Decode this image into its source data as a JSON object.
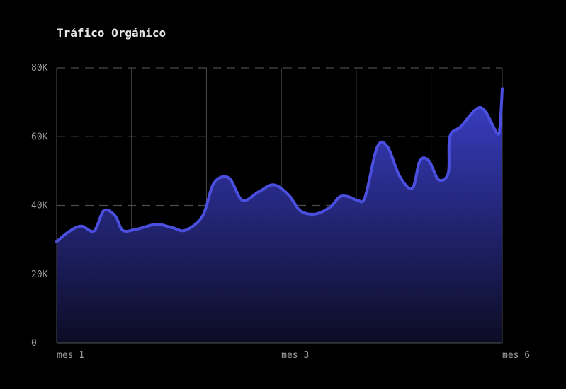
{
  "chart_data": {
    "type": "area",
    "title": "Tráfico Orgánico",
    "xlabel": "",
    "ylabel": "",
    "xlim": [
      1,
      6.95
    ],
    "ylim": [
      0,
      80000
    ],
    "y_ticks": [
      {
        "value": 0,
        "label": "0"
      },
      {
        "value": 20000,
        "label": "20K"
      },
      {
        "value": 40000,
        "label": "40K"
      },
      {
        "value": 60000,
        "label": "60K"
      },
      {
        "value": 80000,
        "label": "80K"
      }
    ],
    "x_ticks": [
      {
        "value": 1,
        "label": "mes 1"
      },
      {
        "value": 4,
        "label": "mes 3"
      },
      {
        "value": 6.95,
        "label": "mes 6"
      }
    ],
    "vertical_grid": [
      1,
      2,
      3,
      4,
      5,
      6,
      6.95
    ],
    "grid": true,
    "colors": {
      "line": "#4a4fe0",
      "fill_top": "#3a3fc8",
      "fill_bottom": "#0c0c24",
      "grid": "#4a4a4a",
      "axis": "#555555"
    },
    "series": [
      {
        "values": [
          [
            1.0,
            29500
          ],
          [
            1.17,
            32500
          ],
          [
            1.33,
            34000
          ],
          [
            1.5,
            32600
          ],
          [
            1.63,
            38500
          ],
          [
            1.78,
            37000
          ],
          [
            1.88,
            32800
          ],
          [
            2.05,
            33000
          ],
          [
            2.33,
            34500
          ],
          [
            2.55,
            33500
          ],
          [
            2.72,
            32800
          ],
          [
            2.95,
            37000
          ],
          [
            3.1,
            46500
          ],
          [
            3.3,
            48000
          ],
          [
            3.48,
            41500
          ],
          [
            3.7,
            44000
          ],
          [
            3.9,
            46000
          ],
          [
            4.1,
            43000
          ],
          [
            4.25,
            38500
          ],
          [
            4.45,
            37500
          ],
          [
            4.65,
            39500
          ],
          [
            4.78,
            42500
          ],
          [
            4.9,
            42500
          ],
          [
            5.02,
            41500
          ],
          [
            5.12,
            42500
          ],
          [
            5.28,
            57000
          ],
          [
            5.42,
            57000
          ],
          [
            5.58,
            48500
          ],
          [
            5.75,
            45000
          ],
          [
            5.85,
            53000
          ],
          [
            5.97,
            53000
          ],
          [
            6.1,
            47500
          ],
          [
            6.23,
            49500
          ],
          [
            6.25,
            60000
          ],
          [
            6.4,
            63000
          ],
          [
            6.6,
            68000
          ],
          [
            6.72,
            67500
          ],
          [
            6.88,
            61000
          ],
          [
            6.92,
            63000
          ],
          [
            6.95,
            74000
          ]
        ]
      }
    ]
  }
}
